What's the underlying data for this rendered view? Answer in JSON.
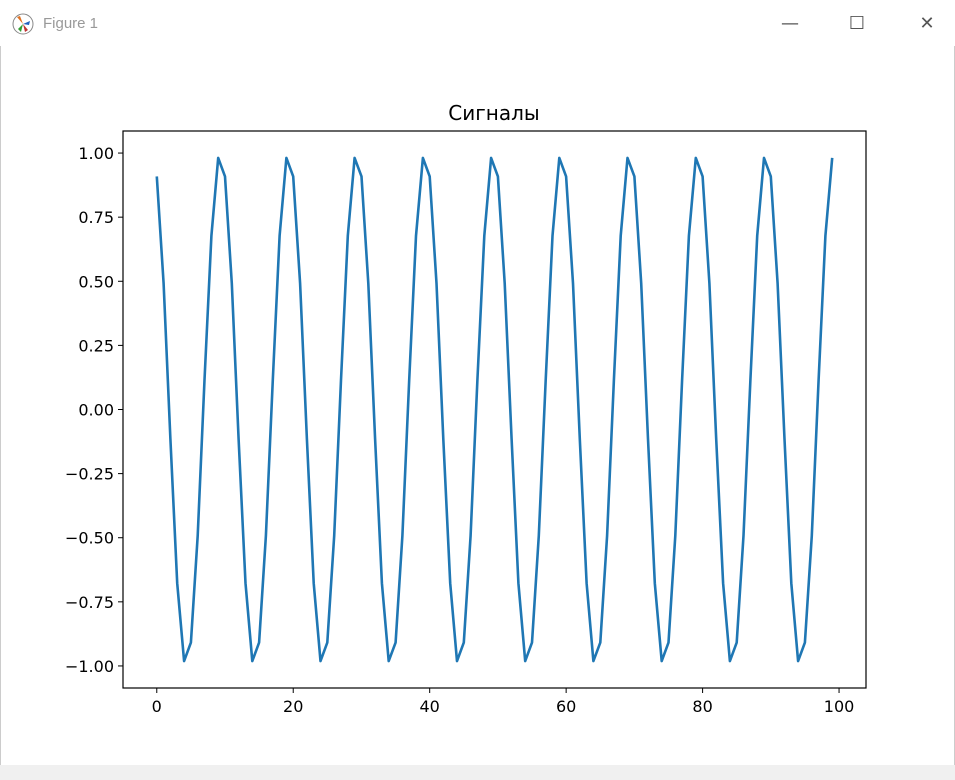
{
  "window": {
    "title": "Figure 1",
    "minimize_icon": "minimize-icon",
    "maximize_icon": "maximize-icon",
    "close_icon": "close-icon"
  },
  "chart_data": {
    "type": "line",
    "title": "Сигналы",
    "xlabel": "",
    "ylabel": "",
    "xlim": [
      -4.95,
      103.95
    ],
    "ylim": [
      -1.086,
      1.086
    ],
    "xticks": [
      0,
      20,
      40,
      60,
      80,
      100
    ],
    "xtick_labels": [
      "0",
      "20",
      "40",
      "60",
      "80",
      "100"
    ],
    "yticks": [
      -1.0,
      -0.75,
      -0.5,
      -0.25,
      0.0,
      0.25,
      0.5,
      0.75,
      1.0
    ],
    "ytick_labels": [
      "−1.00",
      "−0.75",
      "−0.50",
      "−0.25",
      "0.00",
      "0.25",
      "0.50",
      "0.75",
      "1.00"
    ],
    "grid": false,
    "color": "#1f77b4",
    "x": [
      0,
      1,
      2,
      3,
      4,
      5,
      6,
      7,
      8,
      9,
      10,
      11,
      12,
      13,
      14,
      15,
      16,
      17,
      18,
      19,
      20,
      21,
      22,
      23,
      24,
      25,
      26,
      27,
      28,
      29,
      30,
      31,
      32,
      33,
      34,
      35,
      36,
      37,
      38,
      39,
      40,
      41,
      42,
      43,
      44,
      45,
      46,
      47,
      48,
      49,
      50,
      51,
      52,
      53,
      54,
      55,
      56,
      57,
      58,
      59,
      60,
      61,
      62,
      63,
      64,
      65,
      66,
      67,
      68,
      69,
      70,
      71,
      72,
      73,
      74,
      75,
      76,
      77,
      78,
      79,
      80,
      81,
      82,
      83,
      84,
      85,
      86,
      87,
      88,
      89,
      90,
      91,
      92,
      93,
      94,
      95,
      96,
      97,
      98,
      99
    ],
    "y": [
      0.909,
      0.492,
      -0.115,
      -0.677,
      -0.981,
      -0.909,
      -0.492,
      0.115,
      0.677,
      0.981,
      0.909,
      0.492,
      -0.115,
      -0.677,
      -0.981,
      -0.909,
      -0.492,
      0.115,
      0.677,
      0.981,
      0.909,
      0.492,
      -0.115,
      -0.677,
      -0.981,
      -0.909,
      -0.492,
      0.115,
      0.677,
      0.981,
      0.909,
      0.492,
      -0.115,
      -0.677,
      -0.981,
      -0.909,
      -0.492,
      0.115,
      0.677,
      0.981,
      0.909,
      0.492,
      -0.115,
      -0.677,
      -0.981,
      -0.909,
      -0.492,
      0.115,
      0.677,
      0.981,
      0.909,
      0.492,
      -0.115,
      -0.677,
      -0.981,
      -0.909,
      -0.492,
      0.115,
      0.677,
      0.981,
      0.909,
      0.492,
      -0.115,
      -0.677,
      -0.981,
      -0.909,
      -0.492,
      0.115,
      0.677,
      0.981,
      0.909,
      0.492,
      -0.115,
      -0.677,
      -0.981,
      -0.909,
      -0.492,
      0.115,
      0.677,
      0.981,
      0.909,
      0.492,
      -0.115,
      -0.677,
      -0.981,
      -0.909,
      -0.492,
      0.115,
      0.677,
      0.981,
      0.909,
      0.492,
      -0.115,
      -0.677,
      -0.981,
      -0.909,
      -0.492,
      0.115,
      0.677,
      0.981
    ]
  }
}
